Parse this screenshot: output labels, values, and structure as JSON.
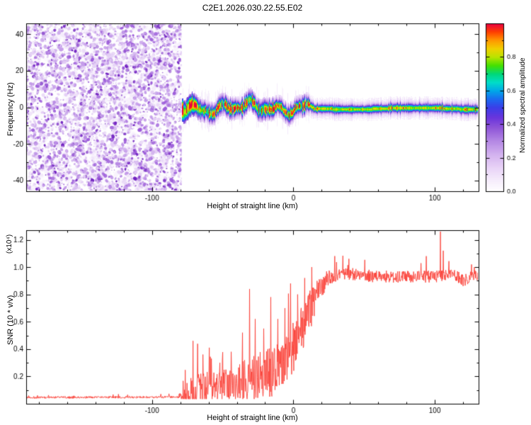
{
  "title": "C2E1.2026.030.22.55.E02",
  "chart_data": [
    {
      "type": "heatmap",
      "description": "Radio occultation spectrogram: left of -79 km is purple speckle noise; right of -79 km a narrow signal ridge at ~0 Hz with hot (red/yellow/green) core, cyan-blue sheath and purple halo, wiggling until ~+20 km then straight.",
      "xlabel": "Height of straight line (km)",
      "ylabel": "Frequency (Hz)",
      "xlim": [
        -189,
        131
      ],
      "ylim": [
        -46,
        46
      ],
      "xticks": [
        -100,
        0,
        100
      ],
      "xtick_labels": [
        "-100",
        "0",
        "100"
      ],
      "x_minor_step": 20,
      "yticks": [
        -40,
        -20,
        0,
        20,
        40
      ],
      "ytick_labels": [
        "-40",
        "-20",
        "0",
        "20",
        "40"
      ],
      "y_minor_step": 10,
      "seed": 42,
      "noise_region": {
        "x_end_km": -79,
        "palette": [
          "#e3cdf5",
          "#c49be9",
          "#9b5ad9",
          "#7020c0"
        ],
        "wash_palette": [
          "#f2e8fb",
          "#ead9f8"
        ]
      },
      "signal_band": {
        "x_start_km": -79,
        "center_hz": 0,
        "wiggle_hz": 4,
        "wiggle_end_km": 20,
        "core_halfwidth_hz": 3,
        "halo_halfwidth_hz": 9,
        "hot_spot_regions_km": [
          [
            -55,
            30
          ],
          [
            60,
            110
          ]
        ],
        "feather_color": "#cfa6ef"
      },
      "colorbar": {
        "label": "Normalized spectral amplitude",
        "range": [
          0,
          1
        ],
        "ticks": [
          0,
          0.2,
          0.4,
          0.6,
          0.8
        ],
        "tick_labels": [
          "0.0",
          "0.2",
          "0.4",
          "0.6",
          "0.8"
        ],
        "minor_step": 0.1,
        "stops": [
          [
            0.0,
            "#ffffff"
          ],
          [
            0.06,
            "#f7effc"
          ],
          [
            0.14,
            "#e9d4f7"
          ],
          [
            0.22,
            "#d4b2ef"
          ],
          [
            0.3,
            "#b488e4"
          ],
          [
            0.38,
            "#8f55d8"
          ],
          [
            0.44,
            "#6a35dc"
          ],
          [
            0.5,
            "#3b3ee8"
          ],
          [
            0.55,
            "#1b6af0"
          ],
          [
            0.6,
            "#00a8e8"
          ],
          [
            0.65,
            "#00ddc8"
          ],
          [
            0.7,
            "#00d87a"
          ],
          [
            0.75,
            "#44e000"
          ],
          [
            0.8,
            "#b8e400"
          ],
          [
            0.85,
            "#f0d000"
          ],
          [
            0.9,
            "#ff9800"
          ],
          [
            0.95,
            "#ff4000"
          ],
          [
            1.0,
            "#e80040"
          ]
        ]
      }
    },
    {
      "type": "line",
      "description": "SNR vs height: flat ~0.05 below -78 km, noisy spiky rise between -75 and +20 km, plateau ~0.93 with fluctuations to the right, large spike ~1.26 near +104 km.",
      "xlabel": "Height of straight line (km)",
      "ylabel": "SNR (10 * v/v)",
      "ylabel_scale": "(x10⁴)",
      "xlim": [
        -189,
        131
      ],
      "ylim": [
        0,
        1.27
      ],
      "xticks": [
        -100,
        0,
        100
      ],
      "xtick_labels": [
        "-100",
        "0",
        "100"
      ],
      "x_minor_step": 20,
      "yticks": [
        0.2,
        0.4,
        0.6,
        0.8,
        1.0,
        1.2
      ],
      "ytick_labels": [
        "0.2",
        "0.4",
        "0.6",
        "0.8",
        "1.0",
        "1.2"
      ],
      "y_minor_step": 0.1,
      "line_color": "#fb4138",
      "seed": 7,
      "base_points": [
        [
          -189,
          0.045
        ],
        [
          -80,
          0.048
        ],
        [
          -72,
          0.07
        ],
        [
          -60,
          0.1
        ],
        [
          -45,
          0.12
        ],
        [
          -30,
          0.16
        ],
        [
          -15,
          0.22
        ],
        [
          -5,
          0.3
        ],
        [
          0,
          0.38
        ],
        [
          5,
          0.5
        ],
        [
          10,
          0.62
        ],
        [
          15,
          0.75
        ],
        [
          20,
          0.85
        ],
        [
          25,
          0.92
        ],
        [
          35,
          0.95
        ],
        [
          55,
          0.93
        ],
        [
          75,
          0.92
        ],
        [
          90,
          0.93
        ],
        [
          100,
          0.92
        ],
        [
          110,
          0.95
        ],
        [
          120,
          0.9
        ],
        [
          131,
          0.94
        ]
      ],
      "noise_points": [
        [
          -189,
          0.008
        ],
        [
          -82,
          0.008
        ],
        [
          -78,
          0.06
        ],
        [
          -72,
          0.12
        ],
        [
          -60,
          0.13
        ],
        [
          -45,
          0.13
        ],
        [
          -35,
          0.16
        ],
        [
          -20,
          0.18
        ],
        [
          -10,
          0.2
        ],
        [
          0,
          0.2
        ],
        [
          8,
          0.18
        ],
        [
          15,
          0.12
        ],
        [
          22,
          0.07
        ],
        [
          30,
          0.045
        ],
        [
          131,
          0.045
        ]
      ],
      "spikes": [
        [
          -71,
          0.46
        ],
        [
          -64,
          0.36
        ],
        [
          -58,
          0.33
        ],
        [
          -52,
          0.3
        ],
        [
          -44,
          0.38
        ],
        [
          -36,
          0.52
        ],
        [
          -31,
          0.84
        ],
        [
          -27,
          0.62
        ],
        [
          -21,
          0.55
        ],
        [
          -16,
          0.78
        ],
        [
          -11,
          0.62
        ],
        [
          -6,
          0.7
        ],
        [
          -2,
          0.88
        ],
        [
          3,
          0.8
        ],
        [
          8,
          0.92
        ],
        [
          13,
          1.0
        ],
        [
          94,
          1.08
        ],
        [
          104,
          1.26
        ],
        [
          106,
          1.12
        ]
      ]
    }
  ]
}
